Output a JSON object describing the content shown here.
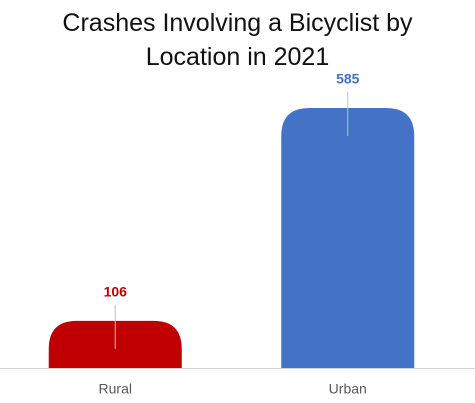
{
  "chart_data": {
    "type": "bar",
    "title": "Crashes Involving a Bicyclist by Location in 2021",
    "categories": [
      "Rural",
      "Urban"
    ],
    "values": [
      106,
      585
    ],
    "colors": [
      "#c00000",
      "#4472c4"
    ],
    "data_labels": true
  }
}
